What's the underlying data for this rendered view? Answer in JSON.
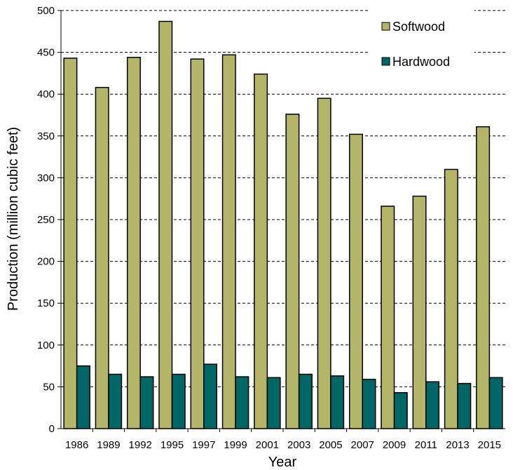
{
  "chart_data": {
    "type": "bar",
    "title": "",
    "xlabel": "Year",
    "ylabel": "Production (million cubic feet)",
    "categories": [
      "1986",
      "1989",
      "1992",
      "1995",
      "1997",
      "1999",
      "2001",
      "2003",
      "2005",
      "2007",
      "2009",
      "2011",
      "2013",
      "2015"
    ],
    "series": [
      {
        "name": "Softwood",
        "color": "#b5b56a",
        "values": [
          443,
          408,
          444,
          487,
          442,
          447,
          424,
          376,
          395,
          352,
          266,
          278,
          310,
          361
        ]
      },
      {
        "name": "Hardwood",
        "color": "#006666",
        "values": [
          75,
          65,
          62,
          65,
          77,
          62,
          61,
          65,
          63,
          59,
          43,
          56,
          54,
          61
        ]
      }
    ],
    "ylim": [
      0,
      500
    ],
    "yticks": [
      0,
      50,
      100,
      150,
      200,
      250,
      300,
      350,
      400,
      450,
      500
    ],
    "grid": true,
    "legend_position": "top-right"
  }
}
